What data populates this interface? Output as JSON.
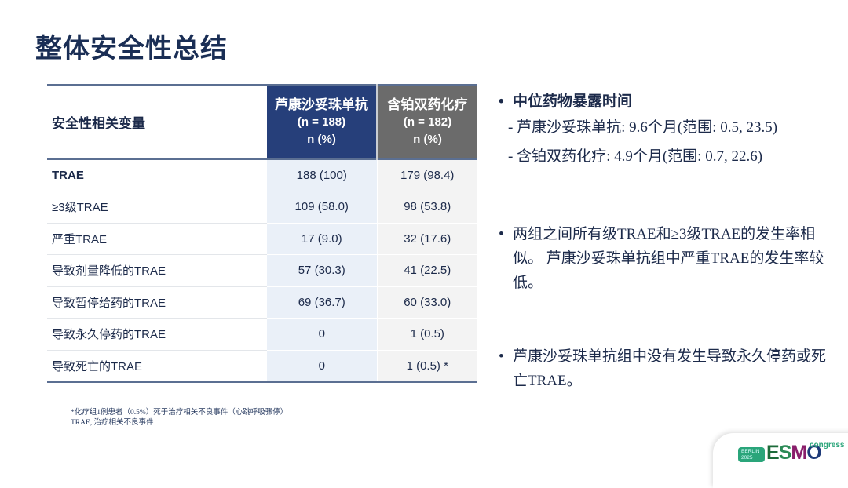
{
  "title": "整体安全性总结",
  "table": {
    "headers": {
      "variable": "安全性相关变量",
      "arm1": {
        "name": "芦康沙妥珠单抗",
        "n": "(n = 188)",
        "unit": "n (%)"
      },
      "arm2": {
        "name": "含铂双药化疗",
        "n": "(n = 182)",
        "unit": "n (%)"
      }
    },
    "rows": [
      {
        "label": "TRAE",
        "arm1": "188 (100)",
        "arm2": "179 (98.4)"
      },
      {
        "label": "≥3级TRAE",
        "arm1": "109 (58.0)",
        "arm2": "98 (53.8)"
      },
      {
        "label": "严重TRAE",
        "arm1": "17 (9.0)",
        "arm2": "32 (17.6)"
      },
      {
        "label": "导致剂量降低的TRAE",
        "arm1": "57 (30.3)",
        "arm2": "41 (22.5)"
      },
      {
        "label": "导致暂停给药的TRAE",
        "arm1": "69 (36.7)",
        "arm2": "60 (33.0)"
      },
      {
        "label": "导致永久停药的TRAE",
        "arm1": "0",
        "arm2": "1 (0.5)"
      },
      {
        "label": "导致死亡的TRAE",
        "arm1": "0",
        "arm2": "1 (0.5) *"
      }
    ]
  },
  "footnotes": [
    "*化疗组1例患者（0.5%）死于治疗相关不良事件（心跳呼吸骤停）",
    "TRAE, 治疗相关不良事件"
  ],
  "bullets": {
    "b1": "中位药物暴露时间",
    "b1_sub": [
      "- 芦康沙妥珠单抗: 9.6个月(范围: 0.5, 23.5)",
      "- 含铂双药化疗: 4.9个月(范围: 0.7, 22.6)"
    ],
    "b2": "两组之间所有级TRAE和≥3级TRAE的发生率相似。 芦康沙妥珠单抗组中严重TRAE的发生率较低。",
    "b3": "芦康沙妥珠单抗组中没有发生导致永久停药或死亡TRAE。"
  },
  "logo": {
    "city": "BERLIN",
    "year": "2025",
    "brand": "ESMO",
    "suffix": "congress"
  },
  "colors": {
    "arm1_header": "#263f7a",
    "arm2_header": "#6b6b6b",
    "title": "#1a2e55",
    "logo_green": "#2aa57a"
  }
}
